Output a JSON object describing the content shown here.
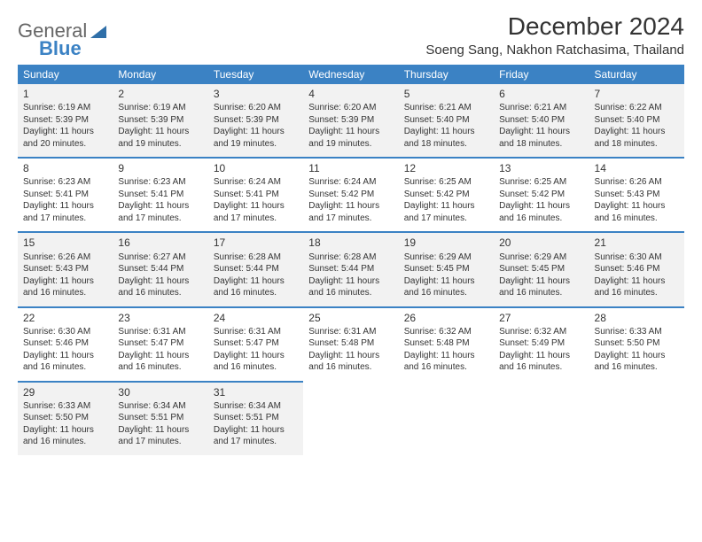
{
  "brand": {
    "part1": "General",
    "part2": "Blue"
  },
  "title": "December 2024",
  "location": "Soeng Sang, Nakhon Ratchasima, Thailand",
  "colors": {
    "header_bg": "#3b82c4",
    "shade_bg": "#f2f2f2",
    "text": "#333333"
  },
  "day_headers": [
    "Sunday",
    "Monday",
    "Tuesday",
    "Wednesday",
    "Thursday",
    "Friday",
    "Saturday"
  ],
  "weeks": [
    [
      {
        "n": "1",
        "sr": "Sunrise: 6:19 AM",
        "ss": "Sunset: 5:39 PM",
        "d1": "Daylight: 11 hours",
        "d2": "and 20 minutes."
      },
      {
        "n": "2",
        "sr": "Sunrise: 6:19 AM",
        "ss": "Sunset: 5:39 PM",
        "d1": "Daylight: 11 hours",
        "d2": "and 19 minutes."
      },
      {
        "n": "3",
        "sr": "Sunrise: 6:20 AM",
        "ss": "Sunset: 5:39 PM",
        "d1": "Daylight: 11 hours",
        "d2": "and 19 minutes."
      },
      {
        "n": "4",
        "sr": "Sunrise: 6:20 AM",
        "ss": "Sunset: 5:39 PM",
        "d1": "Daylight: 11 hours",
        "d2": "and 19 minutes."
      },
      {
        "n": "5",
        "sr": "Sunrise: 6:21 AM",
        "ss": "Sunset: 5:40 PM",
        "d1": "Daylight: 11 hours",
        "d2": "and 18 minutes."
      },
      {
        "n": "6",
        "sr": "Sunrise: 6:21 AM",
        "ss": "Sunset: 5:40 PM",
        "d1": "Daylight: 11 hours",
        "d2": "and 18 minutes."
      },
      {
        "n": "7",
        "sr": "Sunrise: 6:22 AM",
        "ss": "Sunset: 5:40 PM",
        "d1": "Daylight: 11 hours",
        "d2": "and 18 minutes."
      }
    ],
    [
      {
        "n": "8",
        "sr": "Sunrise: 6:23 AM",
        "ss": "Sunset: 5:41 PM",
        "d1": "Daylight: 11 hours",
        "d2": "and 17 minutes."
      },
      {
        "n": "9",
        "sr": "Sunrise: 6:23 AM",
        "ss": "Sunset: 5:41 PM",
        "d1": "Daylight: 11 hours",
        "d2": "and 17 minutes."
      },
      {
        "n": "10",
        "sr": "Sunrise: 6:24 AM",
        "ss": "Sunset: 5:41 PM",
        "d1": "Daylight: 11 hours",
        "d2": "and 17 minutes."
      },
      {
        "n": "11",
        "sr": "Sunrise: 6:24 AM",
        "ss": "Sunset: 5:42 PM",
        "d1": "Daylight: 11 hours",
        "d2": "and 17 minutes."
      },
      {
        "n": "12",
        "sr": "Sunrise: 6:25 AM",
        "ss": "Sunset: 5:42 PM",
        "d1": "Daylight: 11 hours",
        "d2": "and 17 minutes."
      },
      {
        "n": "13",
        "sr": "Sunrise: 6:25 AM",
        "ss": "Sunset: 5:42 PM",
        "d1": "Daylight: 11 hours",
        "d2": "and 16 minutes."
      },
      {
        "n": "14",
        "sr": "Sunrise: 6:26 AM",
        "ss": "Sunset: 5:43 PM",
        "d1": "Daylight: 11 hours",
        "d2": "and 16 minutes."
      }
    ],
    [
      {
        "n": "15",
        "sr": "Sunrise: 6:26 AM",
        "ss": "Sunset: 5:43 PM",
        "d1": "Daylight: 11 hours",
        "d2": "and 16 minutes."
      },
      {
        "n": "16",
        "sr": "Sunrise: 6:27 AM",
        "ss": "Sunset: 5:44 PM",
        "d1": "Daylight: 11 hours",
        "d2": "and 16 minutes."
      },
      {
        "n": "17",
        "sr": "Sunrise: 6:28 AM",
        "ss": "Sunset: 5:44 PM",
        "d1": "Daylight: 11 hours",
        "d2": "and 16 minutes."
      },
      {
        "n": "18",
        "sr": "Sunrise: 6:28 AM",
        "ss": "Sunset: 5:44 PM",
        "d1": "Daylight: 11 hours",
        "d2": "and 16 minutes."
      },
      {
        "n": "19",
        "sr": "Sunrise: 6:29 AM",
        "ss": "Sunset: 5:45 PM",
        "d1": "Daylight: 11 hours",
        "d2": "and 16 minutes."
      },
      {
        "n": "20",
        "sr": "Sunrise: 6:29 AM",
        "ss": "Sunset: 5:45 PM",
        "d1": "Daylight: 11 hours",
        "d2": "and 16 minutes."
      },
      {
        "n": "21",
        "sr": "Sunrise: 6:30 AM",
        "ss": "Sunset: 5:46 PM",
        "d1": "Daylight: 11 hours",
        "d2": "and 16 minutes."
      }
    ],
    [
      {
        "n": "22",
        "sr": "Sunrise: 6:30 AM",
        "ss": "Sunset: 5:46 PM",
        "d1": "Daylight: 11 hours",
        "d2": "and 16 minutes."
      },
      {
        "n": "23",
        "sr": "Sunrise: 6:31 AM",
        "ss": "Sunset: 5:47 PM",
        "d1": "Daylight: 11 hours",
        "d2": "and 16 minutes."
      },
      {
        "n": "24",
        "sr": "Sunrise: 6:31 AM",
        "ss": "Sunset: 5:47 PM",
        "d1": "Daylight: 11 hours",
        "d2": "and 16 minutes."
      },
      {
        "n": "25",
        "sr": "Sunrise: 6:31 AM",
        "ss": "Sunset: 5:48 PM",
        "d1": "Daylight: 11 hours",
        "d2": "and 16 minutes."
      },
      {
        "n": "26",
        "sr": "Sunrise: 6:32 AM",
        "ss": "Sunset: 5:48 PM",
        "d1": "Daylight: 11 hours",
        "d2": "and 16 minutes."
      },
      {
        "n": "27",
        "sr": "Sunrise: 6:32 AM",
        "ss": "Sunset: 5:49 PM",
        "d1": "Daylight: 11 hours",
        "d2": "and 16 minutes."
      },
      {
        "n": "28",
        "sr": "Sunrise: 6:33 AM",
        "ss": "Sunset: 5:50 PM",
        "d1": "Daylight: 11 hours",
        "d2": "and 16 minutes."
      }
    ],
    [
      {
        "n": "29",
        "sr": "Sunrise: 6:33 AM",
        "ss": "Sunset: 5:50 PM",
        "d1": "Daylight: 11 hours",
        "d2": "and 16 minutes."
      },
      {
        "n": "30",
        "sr": "Sunrise: 6:34 AM",
        "ss": "Sunset: 5:51 PM",
        "d1": "Daylight: 11 hours",
        "d2": "and 17 minutes."
      },
      {
        "n": "31",
        "sr": "Sunrise: 6:34 AM",
        "ss": "Sunset: 5:51 PM",
        "d1": "Daylight: 11 hours",
        "d2": "and 17 minutes."
      },
      null,
      null,
      null,
      null
    ]
  ],
  "shaded_rows": [
    0,
    2,
    4
  ]
}
